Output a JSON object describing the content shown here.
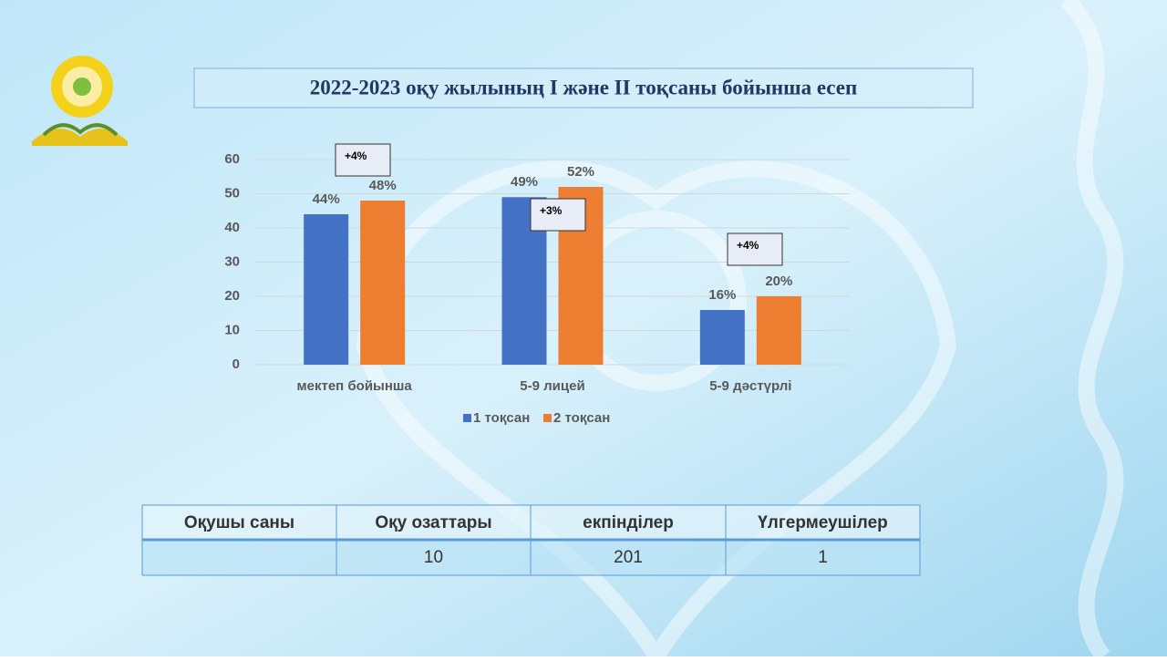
{
  "chart_data": {
    "type": "bar",
    "title": "2022-2023 оқу жылының  I және II тоқсаны бойынша есеп",
    "categories": [
      "мектеп бойынша",
      "5-9 лицей",
      "5-9 дәстүрлі"
    ],
    "series": [
      {
        "name": "1 тоқсан",
        "color": "#4472c4",
        "values": [
          44,
          49,
          16
        ],
        "value_labels": [
          "44%",
          "49%",
          "16%"
        ]
      },
      {
        "name": "2 тоқсан",
        "color": "#ed7d31",
        "values": [
          48,
          52,
          20
        ],
        "value_labels": [
          "48%",
          "52%",
          "20%"
        ]
      }
    ],
    "annotations": [
      "+4%",
      "+3%",
      "+4%"
    ],
    "ylim": [
      0,
      60
    ],
    "yticks": [
      0,
      10,
      20,
      30,
      40,
      50,
      60
    ],
    "grid": true,
    "legend": "bottom"
  },
  "table": {
    "header": [
      "Оқушы саны",
      "Оқу озаттары",
      "екпінділер",
      "Үлгермеушілер"
    ],
    "rows": [
      [
        null,
        10,
        201,
        1
      ]
    ]
  }
}
